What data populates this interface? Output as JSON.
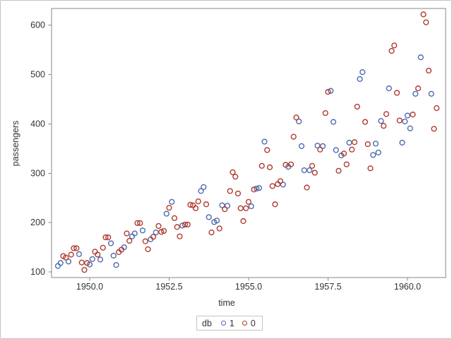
{
  "figure": {
    "background": "#ffffff",
    "outer_border_color": "#c3c3c3"
  },
  "chart_data": {
    "type": "scatter",
    "title": "",
    "xlabel": "time",
    "ylabel": "passengers",
    "xlim": [
      1948.8,
      1961.2
    ],
    "ylim": [
      88.5,
      634
    ],
    "xticks": [
      1950.0,
      1952.5,
      1955.0,
      1957.5,
      1960.0
    ],
    "xtick_labels": [
      "1950.0",
      "1952.5",
      "1955.0",
      "1957.5",
      "1960.0"
    ],
    "yticks": [
      100,
      200,
      300,
      400,
      500,
      600
    ],
    "ytick_labels": [
      "100",
      "200",
      "300",
      "400",
      "500",
      "600"
    ],
    "grid": false,
    "frame_color": "#878787",
    "tick_color": "#878787",
    "text_color": "#333333",
    "legend": {
      "title": "db",
      "position": "bottom-center",
      "border_color": "#c6c6c6",
      "entries": [
        {
          "label": "1",
          "color": "#4e6baf"
        },
        {
          "label": "0",
          "color": "#af3b30"
        }
      ]
    },
    "series": [
      {
        "name": "1",
        "color": "#4e6baf",
        "marker": "open-circle",
        "points": [
          [
            1949.0,
            112
          ],
          [
            1949.0833,
            118
          ],
          [
            1949.3333,
            121
          ],
          [
            1949.6667,
            136
          ],
          [
            1950.0,
            115
          ],
          [
            1950.0833,
            126
          ],
          [
            1950.3333,
            125
          ],
          [
            1950.6667,
            158
          ],
          [
            1950.75,
            133
          ],
          [
            1950.8333,
            114
          ],
          [
            1951.0833,
            150
          ],
          [
            1951.3333,
            172
          ],
          [
            1951.4167,
            178
          ],
          [
            1951.6667,
            184
          ],
          [
            1951.9167,
            166
          ],
          [
            1952.0833,
            180
          ],
          [
            1952.4167,
            218
          ],
          [
            1952.5833,
            242
          ],
          [
            1952.9167,
            194
          ],
          [
            1953.5,
            264
          ],
          [
            1953.5833,
            272
          ],
          [
            1953.75,
            211
          ],
          [
            1953.9167,
            201
          ],
          [
            1954.0,
            204
          ],
          [
            1954.1667,
            235
          ],
          [
            1954.3333,
            234
          ],
          [
            1955.0833,
            233
          ],
          [
            1955.25,
            269
          ],
          [
            1955.3333,
            270
          ],
          [
            1955.5,
            364
          ],
          [
            1956.0833,
            277
          ],
          [
            1956.25,
            313
          ],
          [
            1956.5833,
            405
          ],
          [
            1956.6667,
            355
          ],
          [
            1956.75,
            306
          ],
          [
            1956.9167,
            306
          ],
          [
            1957.1667,
            356
          ],
          [
            1957.3333,
            355
          ],
          [
            1957.5833,
            467
          ],
          [
            1957.6667,
            404
          ],
          [
            1957.75,
            347
          ],
          [
            1957.9167,
            336
          ],
          [
            1958.1667,
            362
          ],
          [
            1958.5,
            491
          ],
          [
            1958.5833,
            505
          ],
          [
            1958.9167,
            337
          ],
          [
            1959.0,
            360
          ],
          [
            1959.0833,
            342
          ],
          [
            1959.1667,
            406
          ],
          [
            1959.4167,
            472
          ],
          [
            1959.8333,
            362
          ],
          [
            1959.9167,
            405
          ],
          [
            1960.0,
            417
          ],
          [
            1960.0833,
            391
          ],
          [
            1960.25,
            461
          ],
          [
            1960.4167,
            535
          ],
          [
            1960.75,
            461
          ]
        ]
      },
      {
        "name": "0",
        "color": "#af3b30",
        "marker": "open-circle",
        "points": [
          [
            1949.1667,
            132
          ],
          [
            1949.25,
            129
          ],
          [
            1949.4167,
            135
          ],
          [
            1949.5,
            148
          ],
          [
            1949.5833,
            148
          ],
          [
            1949.75,
            119
          ],
          [
            1949.8333,
            104
          ],
          [
            1949.9167,
            118
          ],
          [
            1950.1667,
            141
          ],
          [
            1950.25,
            135
          ],
          [
            1950.4167,
            149
          ],
          [
            1950.5,
            170
          ],
          [
            1950.5833,
            170
          ],
          [
            1950.9167,
            140
          ],
          [
            1951.0,
            145
          ],
          [
            1951.1667,
            178
          ],
          [
            1951.25,
            163
          ],
          [
            1951.5,
            199
          ],
          [
            1951.5833,
            199
          ],
          [
            1951.75,
            162
          ],
          [
            1951.8333,
            146
          ],
          [
            1952.0,
            171
          ],
          [
            1952.1667,
            193
          ],
          [
            1952.25,
            181
          ],
          [
            1952.3333,
            183
          ],
          [
            1952.5,
            230
          ],
          [
            1952.6667,
            209
          ],
          [
            1952.75,
            191
          ],
          [
            1952.8333,
            172
          ],
          [
            1953.0,
            196
          ],
          [
            1953.0833,
            196
          ],
          [
            1953.1667,
            236
          ],
          [
            1953.25,
            235
          ],
          [
            1953.3333,
            229
          ],
          [
            1953.4167,
            243
          ],
          [
            1953.6667,
            237
          ],
          [
            1953.8333,
            180
          ],
          [
            1954.0833,
            188
          ],
          [
            1954.25,
            227
          ],
          [
            1954.4167,
            264
          ],
          [
            1954.5,
            302
          ],
          [
            1954.5833,
            293
          ],
          [
            1954.6667,
            259
          ],
          [
            1954.75,
            229
          ],
          [
            1954.8333,
            203
          ],
          [
            1954.9167,
            229
          ],
          [
            1955.0,
            242
          ],
          [
            1955.1667,
            267
          ],
          [
            1955.4167,
            315
          ],
          [
            1955.5833,
            347
          ],
          [
            1955.6667,
            312
          ],
          [
            1955.75,
            274
          ],
          [
            1955.8333,
            237
          ],
          [
            1955.9167,
            278
          ],
          [
            1956.0,
            284
          ],
          [
            1956.1667,
            317
          ],
          [
            1956.3333,
            318
          ],
          [
            1956.4167,
            374
          ],
          [
            1956.5,
            413
          ],
          [
            1956.8333,
            271
          ],
          [
            1957.0,
            315
          ],
          [
            1957.0833,
            301
          ],
          [
            1957.25,
            348
          ],
          [
            1957.4167,
            422
          ],
          [
            1957.5,
            465
          ],
          [
            1957.8333,
            305
          ],
          [
            1958.0,
            340
          ],
          [
            1958.0833,
            318
          ],
          [
            1958.25,
            348
          ],
          [
            1958.3333,
            363
          ],
          [
            1958.4167,
            435
          ],
          [
            1958.6667,
            404
          ],
          [
            1958.75,
            359
          ],
          [
            1958.8333,
            310
          ],
          [
            1959.25,
            396
          ],
          [
            1959.3333,
            420
          ],
          [
            1959.5,
            548
          ],
          [
            1959.5833,
            559
          ],
          [
            1959.6667,
            463
          ],
          [
            1959.75,
            407
          ],
          [
            1960.1667,
            419
          ],
          [
            1960.3333,
            472
          ],
          [
            1960.5,
            622
          ],
          [
            1960.5833,
            606
          ],
          [
            1960.6667,
            508
          ],
          [
            1960.8333,
            390
          ],
          [
            1960.9167,
            432
          ]
        ]
      }
    ]
  }
}
